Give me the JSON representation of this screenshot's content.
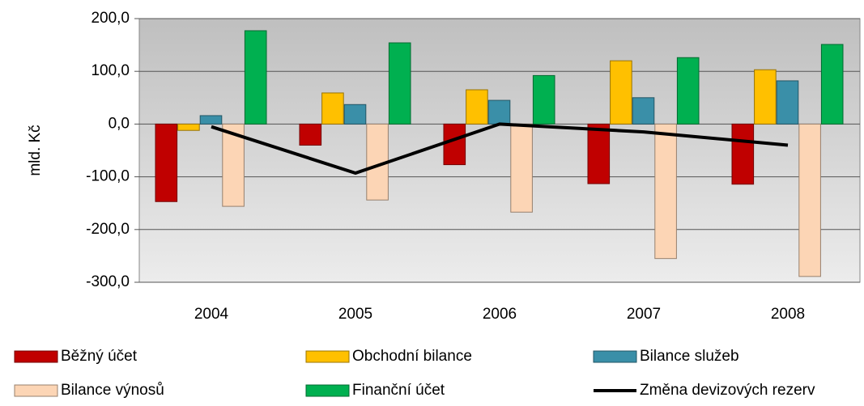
{
  "chart_data": {
    "type": "bar",
    "y_label": "mld. Kč",
    "categories": [
      "2004",
      "2005",
      "2006",
      "2007",
      "2008"
    ],
    "series": [
      {
        "name": "Běžný účet",
        "color": "#c00000",
        "values": [
          -147,
          -40,
          -77,
          -113,
          -114
        ]
      },
      {
        "name": "Obchodní bilance",
        "color": "#ffc000",
        "values": [
          -12,
          59,
          65,
          120,
          103
        ]
      },
      {
        "name": "Bilance služeb",
        "color": "#3a8fa8",
        "values": [
          16,
          37,
          45,
          50,
          82
        ]
      },
      {
        "name": "Bilance výnosů",
        "color": "#fcd5b5",
        "values": [
          -156,
          -144,
          -167,
          -255,
          -289
        ]
      },
      {
        "name": "Finanční účet",
        "color": "#00b050",
        "values": [
          177,
          154,
          92,
          126,
          151
        ]
      },
      {
        "name": "Změna devizových rezerv",
        "type": "line",
        "color": "#000000",
        "values": [
          -5,
          -93,
          0,
          -15,
          -40
        ]
      }
    ],
    "ylim": [
      -300,
      200
    ],
    "yticks": [
      {
        "value": -300,
        "label": "-300,0"
      },
      {
        "value": -200,
        "label": "-200,0"
      },
      {
        "value": -100,
        "label": "-100,0"
      },
      {
        "value": 0,
        "label": "0,0"
      },
      {
        "value": 100,
        "label": "100,0"
      },
      {
        "value": 200,
        "label": "200,0"
      }
    ],
    "grid": true,
    "legend": "bottom"
  }
}
